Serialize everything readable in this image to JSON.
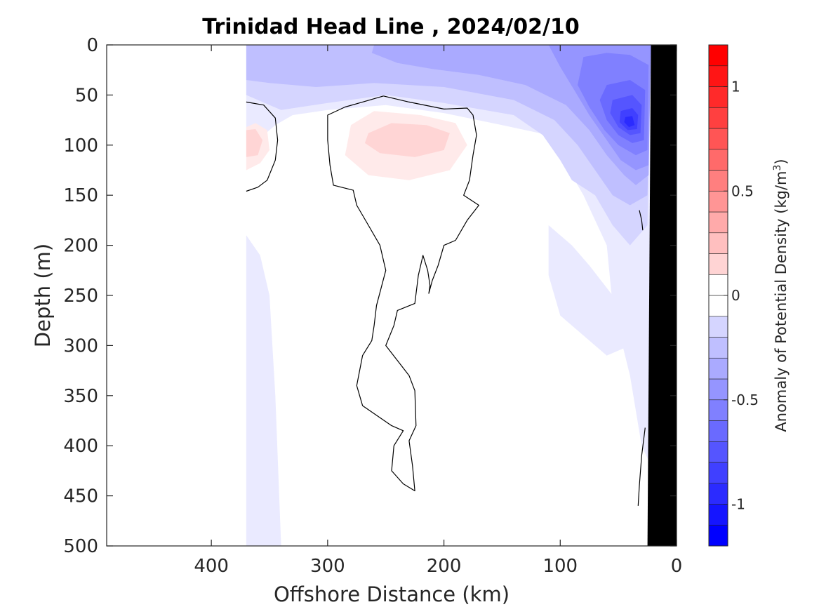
{
  "chart_data": {
    "type": "heatmap",
    "title": "Trinidad Head Line , 2024/02/10",
    "xlabel": "Offshore Distance (km)",
    "ylabel": "Depth (m)",
    "x_reversed": true,
    "y_reversed": true,
    "xlim": [
      490,
      0
    ],
    "ylim": [
      500,
      0
    ],
    "x_ticks": [
      400,
      300,
      200,
      100,
      0
    ],
    "y_ticks": [
      0,
      50,
      100,
      150,
      200,
      250,
      300,
      350,
      400,
      450,
      500
    ],
    "grid": false,
    "colorbar": {
      "label": "Anomaly of Potential Density (kg/m",
      "label_superscript": "3",
      "label_suffix": ")",
      "range": [
        -1.2,
        1.2
      ],
      "step": 0.1,
      "ticks": [
        1,
        0.5,
        0,
        -0.5,
        -1
      ],
      "tick_labels": [
        "1",
        "0.5",
        "0",
        "-0.5",
        "-1"
      ],
      "negative_color": "#0000ff",
      "positive_color": "#ff0000",
      "zero_color": "#ffffff"
    },
    "data_coverage_km": [
      0,
      370
    ],
    "bathymetry_color": "#000000",
    "bathymetry": [
      [
        22,
        0
      ],
      [
        4,
        0
      ],
      [
        0,
        0
      ],
      [
        0,
        500
      ],
      [
        25,
        500
      ]
    ],
    "contour_levels": [
      0
    ],
    "contour_color": "#000000",
    "regions": [
      {
        "level": -0.1,
        "points": [
          [
            370,
            0
          ],
          [
            22,
            0
          ],
          [
            22,
            420
          ],
          [
            30,
            400
          ],
          [
            40,
            330
          ],
          [
            55,
            260
          ],
          [
            60,
            200
          ],
          [
            80,
            150
          ],
          [
            95,
            120
          ],
          [
            110,
            90
          ],
          [
            150,
            80
          ],
          [
            200,
            68
          ],
          [
            250,
            60
          ],
          [
            300,
            65
          ],
          [
            330,
            70
          ],
          [
            345,
            80
          ],
          [
            360,
            95
          ],
          [
            370,
            105
          ],
          [
            370,
            500
          ],
          [
            340,
            500
          ],
          [
            345,
            350
          ],
          [
            350,
            250
          ],
          [
            358,
            210
          ],
          [
            370,
            190
          ]
        ]
      },
      {
        "level": -0.1,
        "points": [
          [
            40,
            300
          ],
          [
            55,
            250
          ],
          [
            75,
            220
          ],
          [
            90,
            200
          ],
          [
            110,
            180
          ],
          [
            110,
            230
          ],
          [
            100,
            270
          ],
          [
            80,
            290
          ],
          [
            60,
            310
          ]
        ]
      },
      {
        "level": -0.2,
        "points": [
          [
            370,
            0
          ],
          [
            22,
            0
          ],
          [
            25,
            180
          ],
          [
            40,
            200
          ],
          [
            55,
            180
          ],
          [
            70,
            150
          ],
          [
            90,
            135
          ],
          [
            100,
            115
          ],
          [
            115,
            90
          ],
          [
            140,
            70
          ],
          [
            200,
            58
          ],
          [
            250,
            50
          ],
          [
            300,
            58
          ],
          [
            340,
            65
          ],
          [
            360,
            55
          ],
          [
            370,
            50
          ]
        ]
      },
      {
        "level": -0.3,
        "points": [
          [
            370,
            0
          ],
          [
            22,
            0
          ],
          [
            25,
            150
          ],
          [
            40,
            160
          ],
          [
            55,
            150
          ],
          [
            70,
            125
          ],
          [
            85,
            100
          ],
          [
            105,
            75
          ],
          [
            140,
            55
          ],
          [
            200,
            42
          ],
          [
            260,
            38
          ],
          [
            310,
            42
          ],
          [
            350,
            38
          ],
          [
            370,
            35
          ]
        ]
      },
      {
        "level": -0.4,
        "points": [
          [
            260,
            0
          ],
          [
            22,
            0
          ],
          [
            24,
            130
          ],
          [
            35,
            140
          ],
          [
            45,
            130
          ],
          [
            60,
            110
          ],
          [
            75,
            85
          ],
          [
            95,
            60
          ],
          [
            130,
            40
          ],
          [
            170,
            30
          ],
          [
            210,
            24
          ],
          [
            240,
            18
          ],
          [
            262,
            8
          ]
        ]
      },
      {
        "level": -0.5,
        "points": [
          [
            110,
            0
          ],
          [
            22,
            0
          ],
          [
            24,
            120
          ],
          [
            35,
            125
          ],
          [
            48,
            115
          ],
          [
            60,
            95
          ],
          [
            75,
            70
          ],
          [
            88,
            45
          ],
          [
            100,
            22
          ]
        ]
      },
      {
        "level": -0.6,
        "points": [
          [
            80,
            12
          ],
          [
            60,
            8
          ],
          [
            40,
            10
          ],
          [
            24,
            20
          ],
          [
            25,
            105
          ],
          [
            35,
            110
          ],
          [
            50,
            100
          ],
          [
            62,
            85
          ],
          [
            75,
            62
          ],
          [
            85,
            40
          ]
        ]
      },
      {
        "level": -0.7,
        "points": [
          [
            60,
            40
          ],
          [
            40,
            35
          ],
          [
            27,
            45
          ],
          [
            28,
            95
          ],
          [
            38,
            98
          ],
          [
            50,
            90
          ],
          [
            60,
            75
          ],
          [
            66,
            55
          ]
        ]
      },
      {
        "level": -0.8,
        "points": [
          [
            55,
            55
          ],
          [
            38,
            50
          ],
          [
            30,
            60
          ],
          [
            31,
            88
          ],
          [
            40,
            90
          ],
          [
            50,
            82
          ],
          [
            57,
            68
          ]
        ]
      },
      {
        "level": -0.9,
        "points": [
          [
            48,
            66
          ],
          [
            38,
            63
          ],
          [
            33,
            70
          ],
          [
            34,
            84
          ],
          [
            42,
            85
          ],
          [
            49,
            77
          ]
        ]
      },
      {
        "level": -1.0,
        "points": [
          [
            44,
            72
          ],
          [
            38,
            71
          ],
          [
            36,
            80
          ],
          [
            41,
            82
          ],
          [
            45,
            77
          ]
        ]
      },
      {
        "level": 0.1,
        "points": [
          [
            280,
            80
          ],
          [
            260,
            66
          ],
          [
            220,
            70
          ],
          [
            190,
            78
          ],
          [
            180,
            100
          ],
          [
            195,
            125
          ],
          [
            230,
            135
          ],
          [
            265,
            130
          ],
          [
            285,
            110
          ]
        ]
      },
      {
        "level": 0.2,
        "points": [
          [
            265,
            88
          ],
          [
            245,
            78
          ],
          [
            215,
            80
          ],
          [
            195,
            88
          ],
          [
            200,
            105
          ],
          [
            225,
            112
          ],
          [
            255,
            108
          ],
          [
            268,
            98
          ]
        ]
      },
      {
        "level": 0.1,
        "points": [
          [
            370,
            82
          ],
          [
            362,
            78
          ],
          [
            352,
            85
          ],
          [
            350,
            105
          ],
          [
            358,
            118
          ],
          [
            370,
            125
          ]
        ]
      },
      {
        "level": 0.2,
        "points": [
          [
            370,
            85
          ],
          [
            362,
            84
          ],
          [
            356,
            95
          ],
          [
            360,
            110
          ],
          [
            370,
            112
          ]
        ]
      }
    ],
    "zero_contours": [
      [
        [
          370,
          57
        ],
        [
          355,
          60
        ],
        [
          345,
          73
        ],
        [
          343,
          95
        ],
        [
          345,
          115
        ],
        [
          352,
          135
        ],
        [
          360,
          142
        ],
        [
          370,
          146
        ]
      ],
      [
        [
          252,
          51
        ],
        [
          230,
          57
        ],
        [
          200,
          64
        ],
        [
          180,
          63
        ],
        [
          175,
          70
        ],
        [
          172,
          90
        ],
        [
          175,
          110
        ],
        [
          178,
          135
        ],
        [
          183,
          150
        ],
        [
          170,
          160
        ],
        [
          180,
          175
        ],
        [
          190,
          195
        ],
        [
          200,
          200
        ],
        [
          205,
          220
        ],
        [
          210,
          235
        ],
        [
          213,
          248
        ],
        [
          212,
          240
        ],
        [
          214,
          225
        ],
        [
          218,
          210
        ],
        [
          222,
          230
        ],
        [
          225,
          258
        ],
        [
          240,
          265
        ],
        [
          243,
          280
        ],
        [
          250,
          300
        ],
        [
          240,
          315
        ],
        [
          230,
          330
        ],
        [
          225,
          345
        ],
        [
          224,
          380
        ],
        [
          230,
          395
        ],
        [
          227,
          420
        ],
        [
          225,
          445
        ],
        [
          235,
          438
        ],
        [
          245,
          425
        ],
        [
          243,
          400
        ],
        [
          235,
          385
        ],
        [
          245,
          380
        ],
        [
          270,
          360
        ],
        [
          275,
          340
        ],
        [
          270,
          310
        ],
        [
          262,
          295
        ],
        [
          260,
          280
        ],
        [
          258,
          260
        ],
        [
          250,
          225
        ],
        [
          255,
          200
        ],
        [
          265,
          180
        ],
        [
          275,
          160
        ],
        [
          278,
          145
        ],
        [
          295,
          140
        ],
        [
          298,
          120
        ],
        [
          300,
          95
        ],
        [
          300,
          70
        ],
        [
          285,
          62
        ],
        [
          270,
          57
        ],
        [
          252,
          51
        ]
      ],
      [
        [
          32,
          165
        ],
        [
          30,
          175
        ],
        [
          29,
          185
        ]
      ],
      [
        [
          27,
          382
        ],
        [
          30,
          410
        ],
        [
          32,
          440
        ],
        [
          33,
          460
        ]
      ]
    ]
  }
}
